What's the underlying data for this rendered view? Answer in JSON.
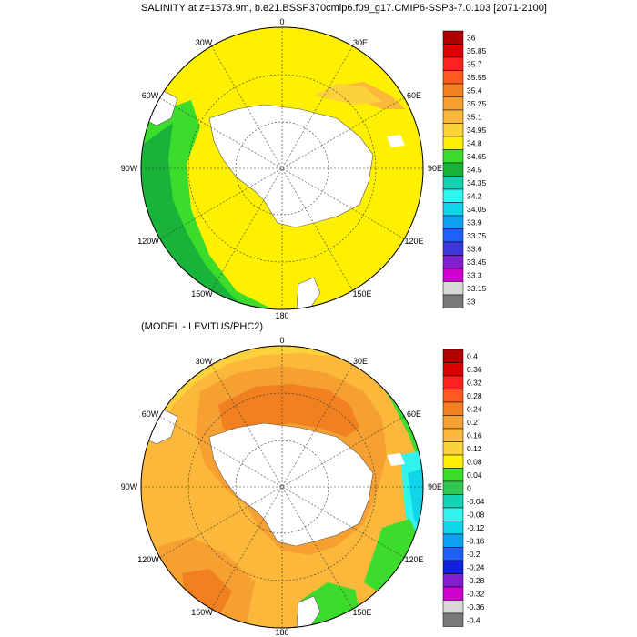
{
  "panel_top": {
    "title": "SALINITY at z=1573.9m, b.e21.BSSP370cmip6.f09_g17.CMIP6-SSP3-7.0.103 [2071-2100]",
    "colorbar": {
      "levels": [
        "36",
        "35.85",
        "35.7",
        "35.55",
        "35.4",
        "35.25",
        "35.1",
        "34.95",
        "34.8",
        "34.65",
        "34.5",
        "34.35",
        "34.2",
        "34.05",
        "33.9",
        "33.75",
        "33.6",
        "33.45",
        "33.3",
        "33.15",
        "33"
      ],
      "colors": [
        "#b00000",
        "#dd0000",
        "#ff2020",
        "#ff5a1e",
        "#f08020",
        "#f5a030",
        "#fbb83a",
        "#fcd23c",
        "#fef000",
        "#3cdc2c",
        "#18b43a",
        "#16d2b4",
        "#30f4f0",
        "#10d4e8",
        "#10a0f0",
        "#2060f8",
        "#4038d8",
        "#8020d0",
        "#d000d0",
        "#d8d8d8",
        "#787878"
      ]
    },
    "lon_labels": [
      "0",
      "30E",
      "60E",
      "90E",
      "120E",
      "150E",
      "180",
      "150W",
      "120W",
      "90W",
      "60W",
      "30W"
    ]
  },
  "panel_bottom": {
    "title": "(MODEL - LEVITUS/PHC2)",
    "colorbar": {
      "levels": [
        "0.4",
        "0.36",
        "0.32",
        "0.28",
        "0.24",
        "0.2",
        "0.16",
        "0.12",
        "0.08",
        "0.04",
        "0",
        "-0.04",
        "-0.08",
        "-0.12",
        "-0.16",
        "-0.2",
        "-0.24",
        "-0.28",
        "-0.32",
        "-0.36",
        "-0.4"
      ],
      "colors": [
        "#b00000",
        "#dd0000",
        "#ff2020",
        "#ff5a1e",
        "#f08020",
        "#f5a030",
        "#fbb83a",
        "#fcd23c",
        "#fef000",
        "#3cdc2c",
        "#30c850",
        "#16d2b4",
        "#30f4f0",
        "#10d4e8",
        "#10a0f0",
        "#2060f8",
        "#1020e0",
        "#8020d0",
        "#d000d0",
        "#d8d8d8",
        "#787878"
      ]
    },
    "lon_labels": [
      "0",
      "30E",
      "60E",
      "90E",
      "120E",
      "150E",
      "180",
      "150W",
      "120W",
      "90W",
      "60W",
      "30W"
    ]
  }
}
